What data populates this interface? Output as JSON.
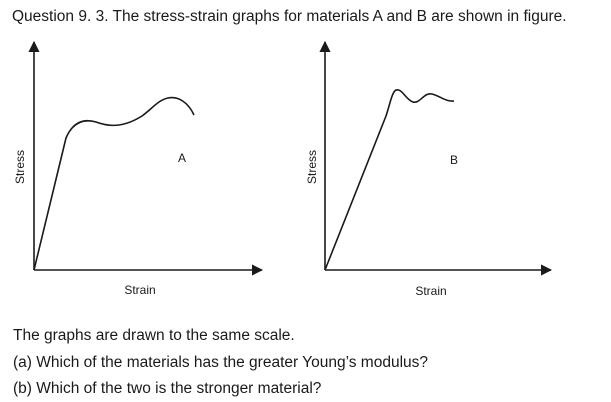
{
  "question": {
    "title": "Question 9. 3. The stress-strain graphs for materials A and B are shown in figure."
  },
  "figure": {
    "graph_a": {
      "label": "A",
      "xlabel": "Strain",
      "ylabel": "Stress"
    },
    "graph_b": {
      "label": "B",
      "xlabel": "Strain",
      "ylabel": "Stress"
    },
    "line_color": "#1a1a1a"
  },
  "text": {
    "line1": "The graphs are drawn to the same scale.",
    "line2": "(a) Which of the materials has the greater Young’s modulus?",
    "line3": "(b) Which of the two is the stronger material?"
  }
}
